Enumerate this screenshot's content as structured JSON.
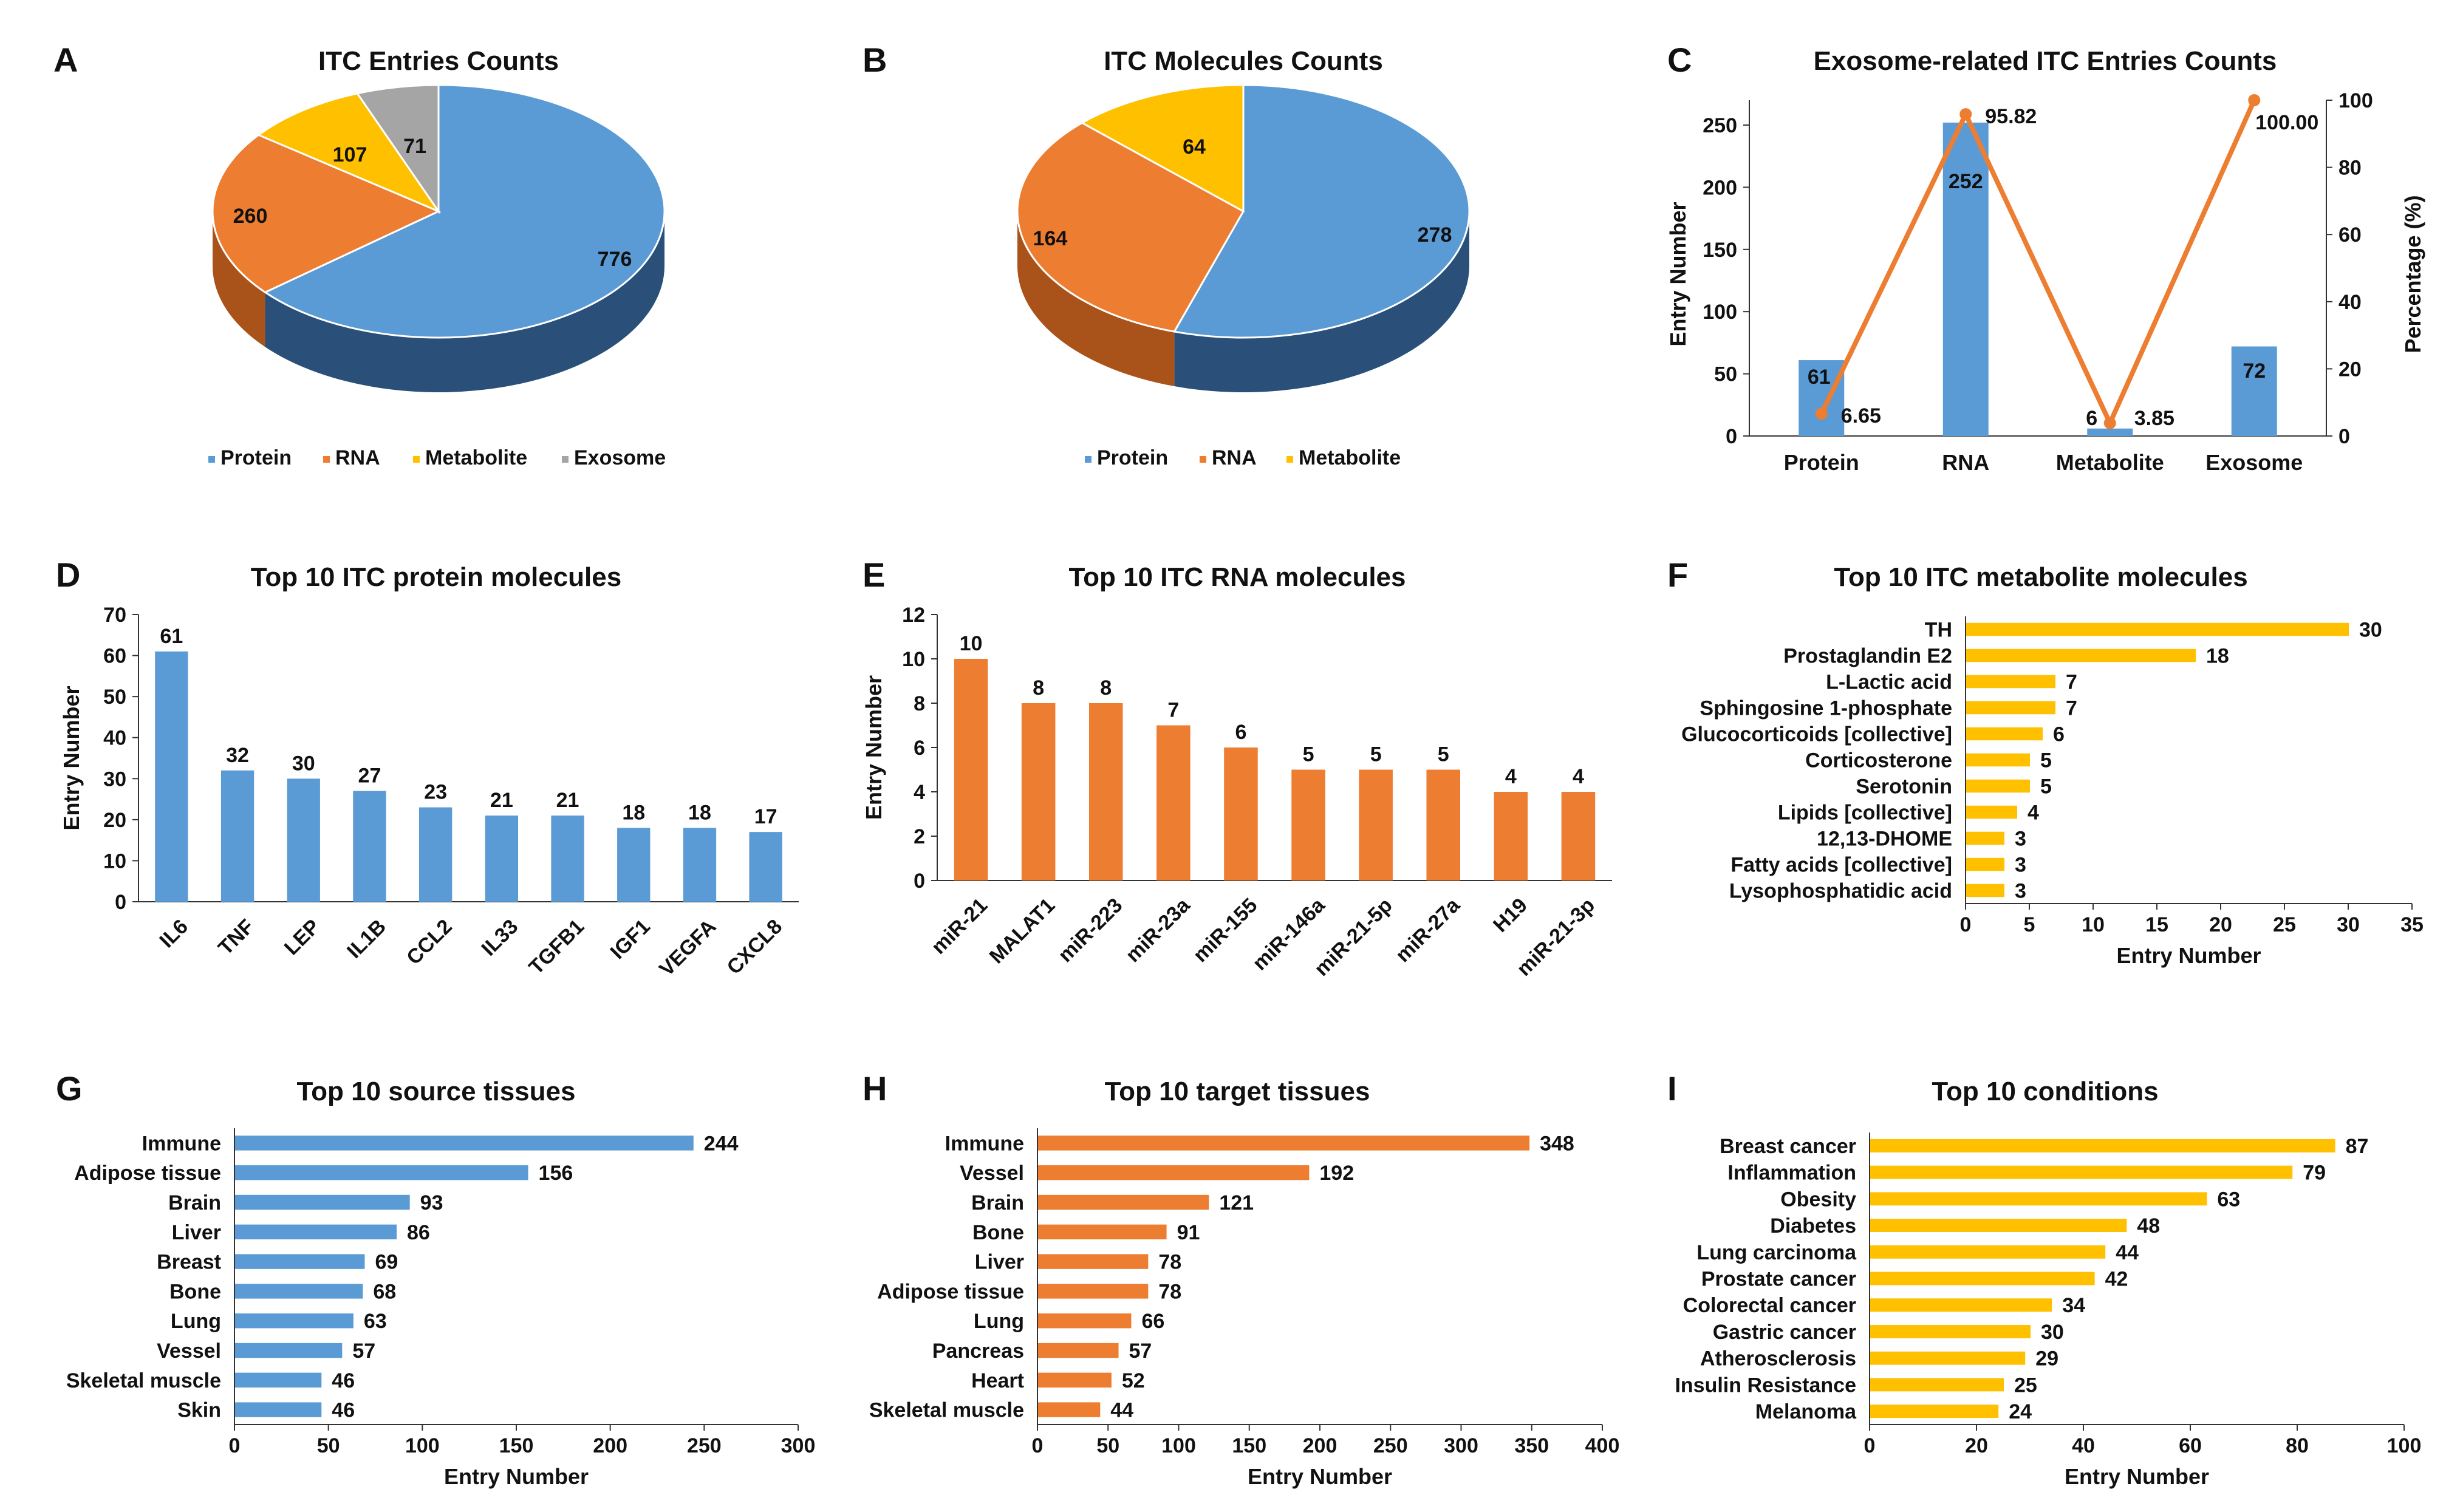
{
  "colors": {
    "blue": "#5B9BD5",
    "blue_dark": "#2A4F78",
    "orange": "#ED7D31",
    "orange_dark": "#A9521A",
    "gold": "#FFC000",
    "gold_dark": "#B78A00",
    "gray": "#A5A5A5",
    "gray_dark": "#6E6E6E",
    "axis": "#333333",
    "text": "#111111"
  },
  "chart_data": [
    {
      "panel": "A",
      "type": "pie",
      "title": "ITC Entries Counts",
      "categories": [
        "Protein",
        "RNA",
        "Metabolite",
        "Exosome"
      ],
      "values": [
        776,
        260,
        107,
        71
      ],
      "legend": "bottom"
    },
    {
      "panel": "B",
      "type": "pie",
      "title": "ITC Molecules Counts",
      "categories": [
        "Protein",
        "RNA",
        "Metabolite"
      ],
      "values": [
        278,
        164,
        64
      ],
      "legend": "bottom"
    },
    {
      "panel": "C",
      "type": "bar",
      "title": "Exosome-related ITC Entries Counts",
      "categories": [
        "Protein",
        "RNA",
        "Metabolite",
        "Exosome"
      ],
      "series": [
        {
          "name": "Entry Number",
          "type": "bar",
          "axis": "left",
          "values": [
            61,
            252,
            6,
            72
          ],
          "labels": [
            "61",
            "252",
            "6",
            "72"
          ]
        },
        {
          "name": "Percentage (%)",
          "type": "line",
          "axis": "right",
          "values": [
            6.65,
            95.82,
            3.85,
            100.0
          ],
          "labels": [
            "6.65",
            "95.82",
            "3.85",
            "100.00"
          ]
        }
      ],
      "ylabel": "Entry Number",
      "ylim": [
        0,
        270
      ],
      "yticks": [
        0,
        50,
        100,
        150,
        200,
        250
      ],
      "y2label": "Percentage (%)",
      "y2lim": [
        0,
        100
      ],
      "y2ticks": [
        0,
        20,
        40,
        60,
        80,
        100
      ]
    },
    {
      "panel": "D",
      "type": "bar",
      "title": "Top 10 ITC protein molecules",
      "categories": [
        "IL6",
        "TNF",
        "LEP",
        "IL1B",
        "CCL2",
        "IL33",
        "TGFB1",
        "IGF1",
        "VEGFA",
        "CXCL8"
      ],
      "values": [
        61,
        32,
        30,
        27,
        23,
        21,
        21,
        18,
        18,
        17
      ],
      "ylabel": "Entry Number",
      "ylim": [
        0,
        70
      ],
      "yticks": [
        0,
        10,
        20,
        30,
        40,
        50,
        60,
        70
      ]
    },
    {
      "panel": "E",
      "type": "bar",
      "title": "Top 10 ITC RNA molecules",
      "categories": [
        "miR-21",
        "MALAT1",
        "miR-223",
        "miR-23a",
        "miR-155",
        "miR-146a",
        "miR-21-5p",
        "miR-27a",
        "H19",
        "miR-21-3p"
      ],
      "values": [
        10,
        8,
        8,
        7,
        6,
        5,
        5,
        5,
        4,
        4
      ],
      "ylabel": "Entry Number",
      "ylim": [
        0,
        12
      ],
      "yticks": [
        0,
        2,
        4,
        6,
        8,
        10,
        12
      ]
    },
    {
      "panel": "F",
      "type": "bar",
      "orientation": "horizontal",
      "title": "Top 10 ITC metabolite molecules",
      "categories": [
        "TH",
        "Prostaglandin E2",
        "L-Lactic acid",
        "Sphingosine 1-phosphate",
        "Glucocorticoids [collective]",
        "Corticosterone",
        "Serotonin",
        "Lipids [collective]",
        "12,13-DHOME",
        "Fatty acids [collective]",
        "Lysophosphatidic acid"
      ],
      "values": [
        30,
        18,
        7,
        7,
        6,
        5,
        5,
        4,
        3,
        3,
        3
      ],
      "xlabel": "Entry Number",
      "xlim": [
        0,
        35
      ],
      "xticks": [
        0,
        5,
        10,
        15,
        20,
        25,
        30,
        35
      ]
    },
    {
      "panel": "G",
      "type": "bar",
      "orientation": "horizontal",
      "title": "Top 10 source tissues",
      "categories": [
        "Immune",
        "Adipose tissue",
        "Brain",
        "Liver",
        "Breast",
        "Bone",
        "Lung",
        "Vessel",
        "Skeletal muscle",
        "Skin"
      ],
      "values": [
        244,
        156,
        93,
        86,
        69,
        68,
        63,
        57,
        46,
        46
      ],
      "xlabel": "Entry Number",
      "xlim": [
        0,
        300
      ],
      "xticks": [
        0,
        50,
        100,
        150,
        200,
        250,
        300
      ]
    },
    {
      "panel": "H",
      "type": "bar",
      "orientation": "horizontal",
      "title": "Top 10 target tissues",
      "categories": [
        "Immune",
        "Vessel",
        "Brain",
        "Bone",
        "Liver",
        "Adipose tissue",
        "Lung",
        "Pancreas",
        "Heart",
        "Skeletal muscle"
      ],
      "values": [
        348,
        192,
        121,
        91,
        78,
        78,
        66,
        57,
        52,
        44
      ],
      "xlabel": "Entry Number",
      "xlim": [
        0,
        400
      ],
      "xticks": [
        0,
        50,
        100,
        150,
        200,
        250,
        300,
        350,
        400
      ]
    },
    {
      "panel": "I",
      "type": "bar",
      "orientation": "horizontal",
      "title": "Top 10 conditions",
      "categories": [
        "Breast cancer",
        "Inflammation",
        "Obesity",
        "Diabetes",
        "Lung carcinoma",
        "Prostate cancer",
        "Colorectal cancer",
        "Gastric cancer",
        "Atherosclerosis",
        "Insulin Resistance",
        "Melanoma"
      ],
      "values": [
        87,
        79,
        63,
        48,
        44,
        42,
        34,
        30,
        29,
        25,
        24
      ],
      "xlabel": "Entry Number",
      "xlim": [
        0,
        100
      ],
      "xticks": [
        0,
        20,
        40,
        60,
        80,
        100
      ]
    }
  ]
}
